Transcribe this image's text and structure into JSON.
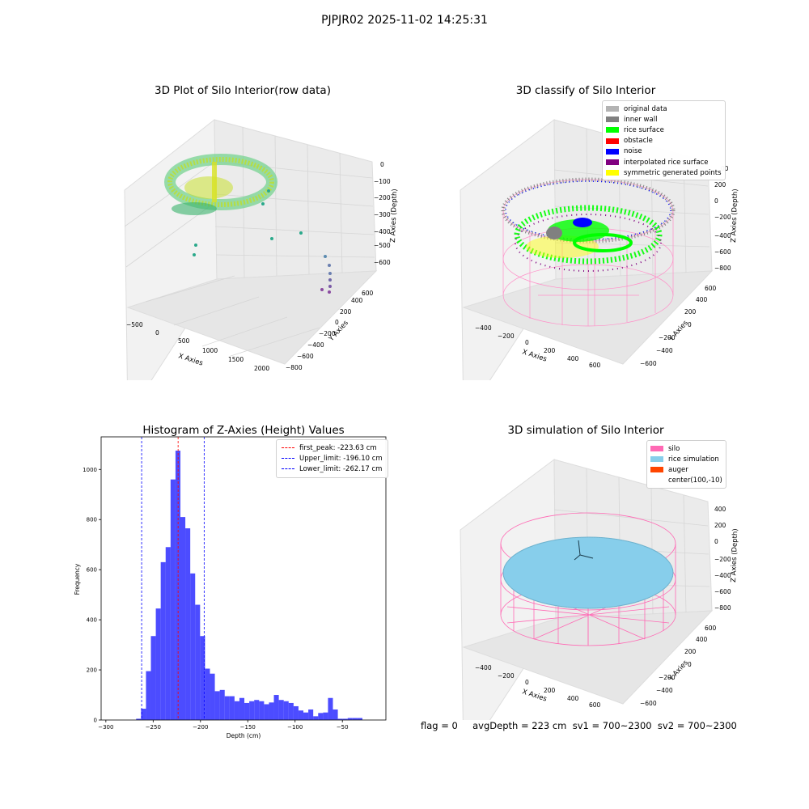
{
  "figure": {
    "suptitle": "PJPJR02 2025-11-02 14:25:31"
  },
  "panels": {
    "raw": {
      "title": "3D Plot of Silo Interior(row data)",
      "xlabel": "X Axies",
      "ylabel": "Y Axies",
      "zlabel": "Z Axies (Depth)",
      "xticks": [
        "−500",
        "0",
        "500",
        "1000",
        "1500",
        "2000"
      ],
      "yticks": [
        "−800",
        "−600",
        "−400",
        "−200",
        "0",
        "200",
        "400",
        "600"
      ],
      "zticks": [
        "0",
        "−100",
        "−200",
        "−300",
        "−400",
        "−500",
        "−600"
      ]
    },
    "classify": {
      "title": "3D classify of Silo Interior",
      "xlabel": "X Axies",
      "ylabel": "Y Axies",
      "zlabel": "Z Axies (Depth)",
      "xticks": [
        "−400",
        "−200",
        "0",
        "200",
        "400",
        "600"
      ],
      "yticks": [
        "−600",
        "−400",
        "−200",
        "0",
        "200",
        "400",
        "600"
      ],
      "zticks": [
        "200",
        "0",
        "−200",
        "−400",
        "−600",
        "−800"
      ],
      "zticks_partial_top": "00",
      "legend": [
        {
          "label": "original data",
          "color": "#b3b3b3"
        },
        {
          "label": "inner wall",
          "color": "#808080"
        },
        {
          "label": "rice surface",
          "color": "#00ff00"
        },
        {
          "label": "obstacle",
          "color": "#ff0000"
        },
        {
          "label": "noise",
          "color": "#0000ff"
        },
        {
          "label": "interpolated rice surface",
          "color": "#800080"
        },
        {
          "label": "symmetric generated points",
          "color": "#ffff00"
        }
      ]
    },
    "simulation": {
      "title": "3D simulation of Silo Interior",
      "xlabel": "X Axies",
      "ylabel": "Y Axies",
      "zlabel": "Z Axies (Depth)",
      "xticks": [
        "−400",
        "−200",
        "0",
        "200",
        "400",
        "600"
      ],
      "yticks": [
        "−600",
        "−400",
        "−200",
        "0",
        "200",
        "400",
        "600"
      ],
      "zticks": [
        "400",
        "200",
        "0",
        "−200",
        "−400",
        "−600",
        "−800"
      ],
      "legend": [
        {
          "label": "silo",
          "color": "#ff69b4"
        },
        {
          "label": "rice simulation",
          "color": "#87ceeb"
        },
        {
          "label": "auger",
          "color": "#ff4500"
        },
        {
          "label": "center(100,-10)",
          "color": ""
        }
      ]
    },
    "histogram": {
      "title": "Histogram of Z-Axies (Height) Values",
      "legend": [
        {
          "label": "first_peak: -223.63 cm",
          "color": "#ff0000"
        },
        {
          "label": "Upper_limit: -196.10 cm",
          "color": "#0000ff"
        },
        {
          "label": "Lower_limit: -262.17 cm",
          "color": "#0000ff"
        }
      ]
    }
  },
  "footer": {
    "text": "flag = 0     avgDepth = 223 cm  sv1 = 700~2300  sv2 = 700~2300"
  },
  "chart_data": [
    {
      "type": "bar",
      "title": "Histogram of Z-Axies (Height) Values",
      "xlabel": "Depth (cm)",
      "ylabel": "Frequency",
      "xlim": [
        -305,
        -4
      ],
      "ylim": [
        0,
        1130
      ],
      "xticks": [
        -300,
        -250,
        -200,
        -150,
        -100,
        -50
      ],
      "yticks": [
        0,
        200,
        400,
        600,
        800,
        1000
      ],
      "bar_color": "#0000ff",
      "bin_width": 5.2,
      "bins_start": [
        -268,
        -262.8,
        -257.6,
        -252.4,
        -247.2,
        -242,
        -236.8,
        -231.6,
        -226.4,
        -221.2,
        -216,
        -210.8,
        -205.6,
        -200.4,
        -195.2,
        -190,
        -184.8,
        -179.6,
        -174.4,
        -169.2,
        -164,
        -158.8,
        -153.6,
        -148.4,
        -143.2,
        -138,
        -132.8,
        -127.6,
        -122.4,
        -117.2,
        -112,
        -106.8,
        -101.6,
        -96.4,
        -91.2,
        -86,
        -80.8,
        -75.6,
        -70.4,
        -65.2,
        -60,
        -54.8,
        -49.6,
        -44.4,
        -39.2,
        -34,
        -28.8,
        -23.6,
        -18.4
      ],
      "counts": [
        5,
        45,
        195,
        335,
        445,
        630,
        690,
        960,
        1075,
        810,
        765,
        585,
        460,
        335,
        205,
        185,
        115,
        120,
        95,
        95,
        75,
        88,
        68,
        75,
        80,
        75,
        63,
        70,
        100,
        80,
        75,
        68,
        55,
        38,
        30,
        42,
        15,
        28,
        30,
        88,
        42,
        5,
        5,
        8,
        8,
        8,
        0,
        0,
        0
      ],
      "vlines": [
        {
          "x": -223.63,
          "label": "first_peak: -223.63 cm",
          "color": "#ff0000"
        },
        {
          "x": -196.1,
          "label": "Upper_limit: -196.10 cm",
          "color": "#0000ff"
        },
        {
          "x": -262.17,
          "label": "Lower_limit: -262.17 cm",
          "color": "#0000ff"
        }
      ]
    }
  ]
}
